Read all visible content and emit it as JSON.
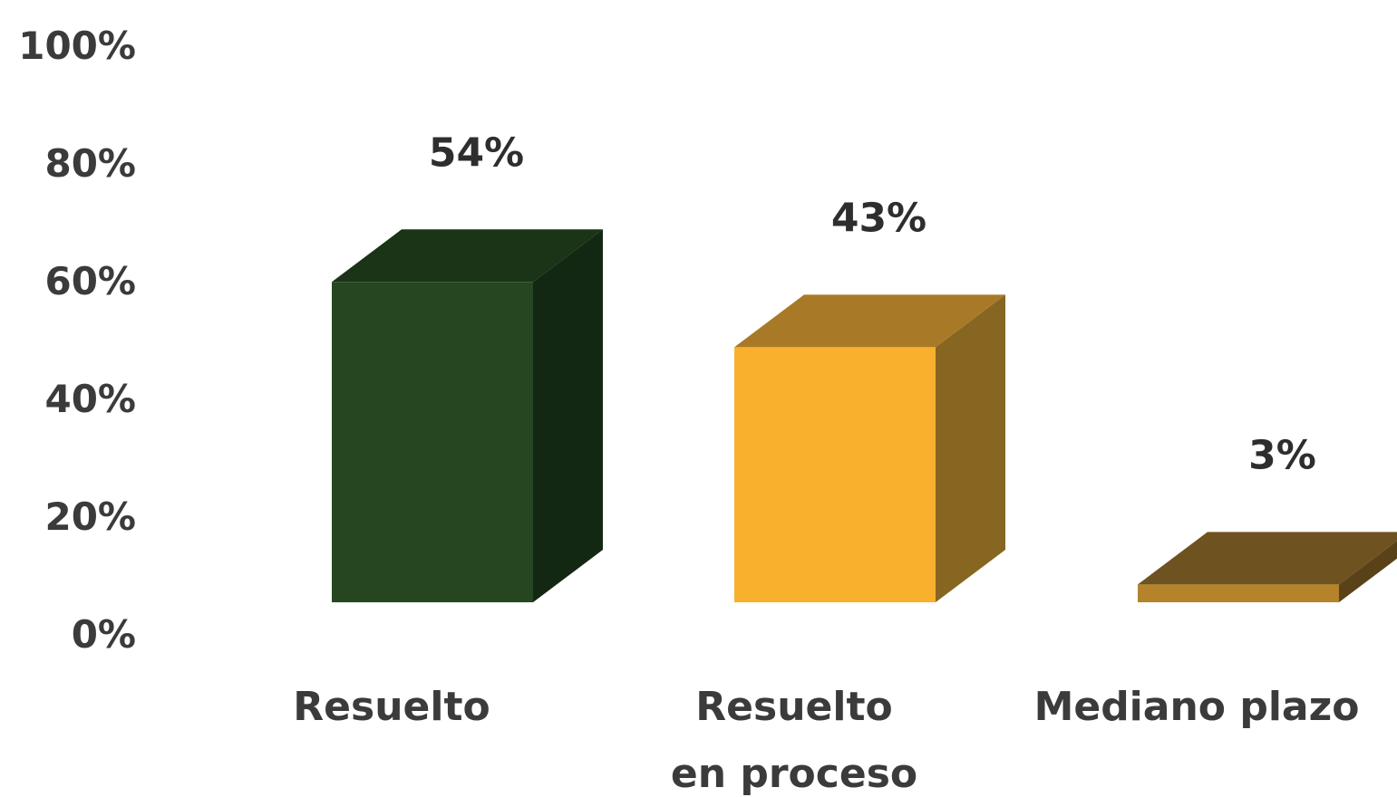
{
  "chart_data": {
    "type": "bar",
    "style": "3d",
    "categories": [
      "Resuelto",
      "Resuelto en proceso",
      "Mediano plazo"
    ],
    "category_lines": [
      [
        "Resuelto"
      ],
      [
        "Resuelto",
        "en proceso"
      ],
      [
        "Mediano plazo"
      ]
    ],
    "values": [
      54,
      43,
      3
    ],
    "data_labels": [
      "54%",
      "43%",
      "3%"
    ],
    "ylim": [
      0,
      100
    ],
    "yticks": [
      0,
      20,
      40,
      60,
      80,
      100
    ],
    "ytick_labels": [
      "0%",
      "20%",
      "40%",
      "60%",
      "80%",
      "100%"
    ],
    "title": "",
    "xlabel": "",
    "ylabel": "",
    "grid": false,
    "legend": "none",
    "colors": {
      "front": [
        "#254620",
        "#f9b02c",
        "#b5832a"
      ],
      "top": [
        "#1b3316",
        "#a87a28",
        "#6e5220"
      ],
      "side": [
        "#132812",
        "#876622",
        "#5a4218"
      ]
    }
  }
}
